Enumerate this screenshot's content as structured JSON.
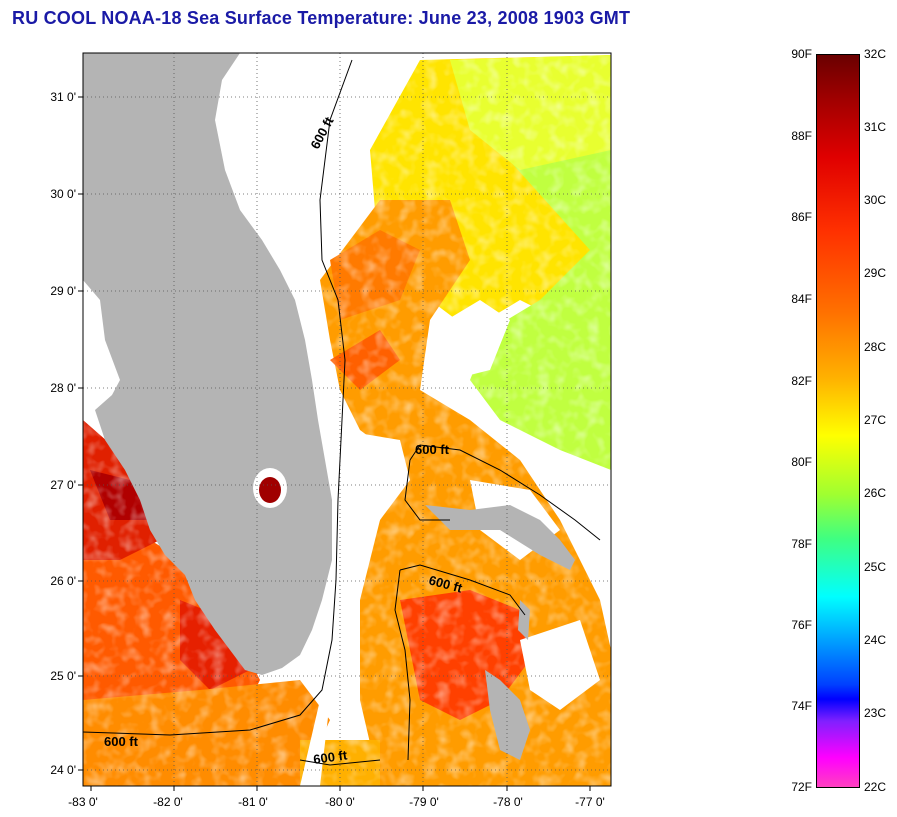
{
  "title": "RU COOL  NOAA-18  Sea Surface Temperature:  June 23, 2008 1903 GMT",
  "map": {
    "lon_ticks": [
      "-83 0'",
      "-82 0'",
      "-81 0'",
      "-80 0'",
      "-79 0'",
      "-78 0'",
      "-77 0'"
    ],
    "lat_ticks": [
      "31 0'",
      "30 0'",
      "29 0'",
      "28 0'",
      "27 0'",
      "26 0'",
      "25 0'",
      "24 0'"
    ],
    "contour_labels": [
      "600 ft",
      "600 ft",
      "600 ft",
      "600 ft",
      "600 ft"
    ],
    "colors": {
      "land": "#b4b4b4",
      "cloud": "#ffffff",
      "warm": "#e02000",
      "orange": "#ff9000",
      "yellow": "#ffd800",
      "green": "#b0ff40",
      "hot": "#a00000"
    }
  },
  "colorbar": {
    "fahrenheit": [
      "90F",
      "88F",
      "86F",
      "84F",
      "82F",
      "80F",
      "78F",
      "76F",
      "74F",
      "72F"
    ],
    "celsius": [
      "32C",
      "31C",
      "30C",
      "29C",
      "28C",
      "27C",
      "26C",
      "25C",
      "24C",
      "23C",
      "22C"
    ]
  }
}
